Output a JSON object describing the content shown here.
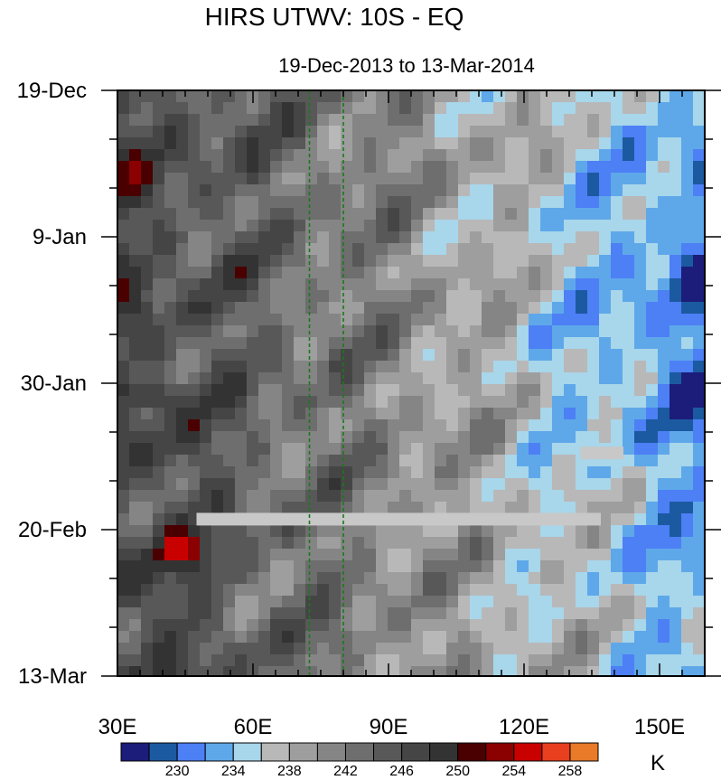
{
  "chart_data": {
    "type": "heatmap",
    "title": "HIRS UTWV: 10S - EQ",
    "subtitle": "19-Dec-2013 to 13-Mar-2014",
    "x_ticks": [
      {
        "value": 30,
        "label": "30E"
      },
      {
        "value": 60,
        "label": "60E"
      },
      {
        "value": 90,
        "label": "90E"
      },
      {
        "value": 120,
        "label": "120E"
      },
      {
        "value": 150,
        "label": "150E"
      }
    ],
    "xlim": [
      30,
      160
    ],
    "y_ticks": [
      {
        "value": 0,
        "label": "19-Dec"
      },
      {
        "value": 21,
        "label": "9-Jan"
      },
      {
        "value": 42,
        "label": "30-Jan"
      },
      {
        "value": 63,
        "label": "20-Feb"
      },
      {
        "value": 84,
        "label": "13-Mar"
      }
    ],
    "ylim": [
      0,
      84
    ],
    "reference_lines_x": [
      72.5,
      80
    ],
    "missing_data_bars": [
      {
        "x_start": 47.5,
        "x_end": 137,
        "day": 61.5
      },
      {
        "x_start": 132.5,
        "x_end": 142,
        "day": 52
      }
    ],
    "colorbar": {
      "unit": "K",
      "levels": [
        230,
        232,
        234,
        236,
        238,
        240,
        242,
        244,
        246,
        248,
        250,
        252,
        254,
        256,
        258
      ],
      "labels": [
        "230",
        "234",
        "238",
        "242",
        "246",
        "250",
        "254",
        "258"
      ],
      "colors": [
        "#1c1c7a",
        "#1b5aa0",
        "#4d7ff5",
        "#5ea8ea",
        "#a8d6ea",
        "#b8b8b8",
        "#9e9e9e",
        "#858585",
        "#6e6e6e",
        "#585858",
        "#454545",
        "#333333",
        "#4a0000",
        "#8b0000",
        "#c80000",
        "#e8401e",
        "#e87a28"
      ]
    }
  }
}
